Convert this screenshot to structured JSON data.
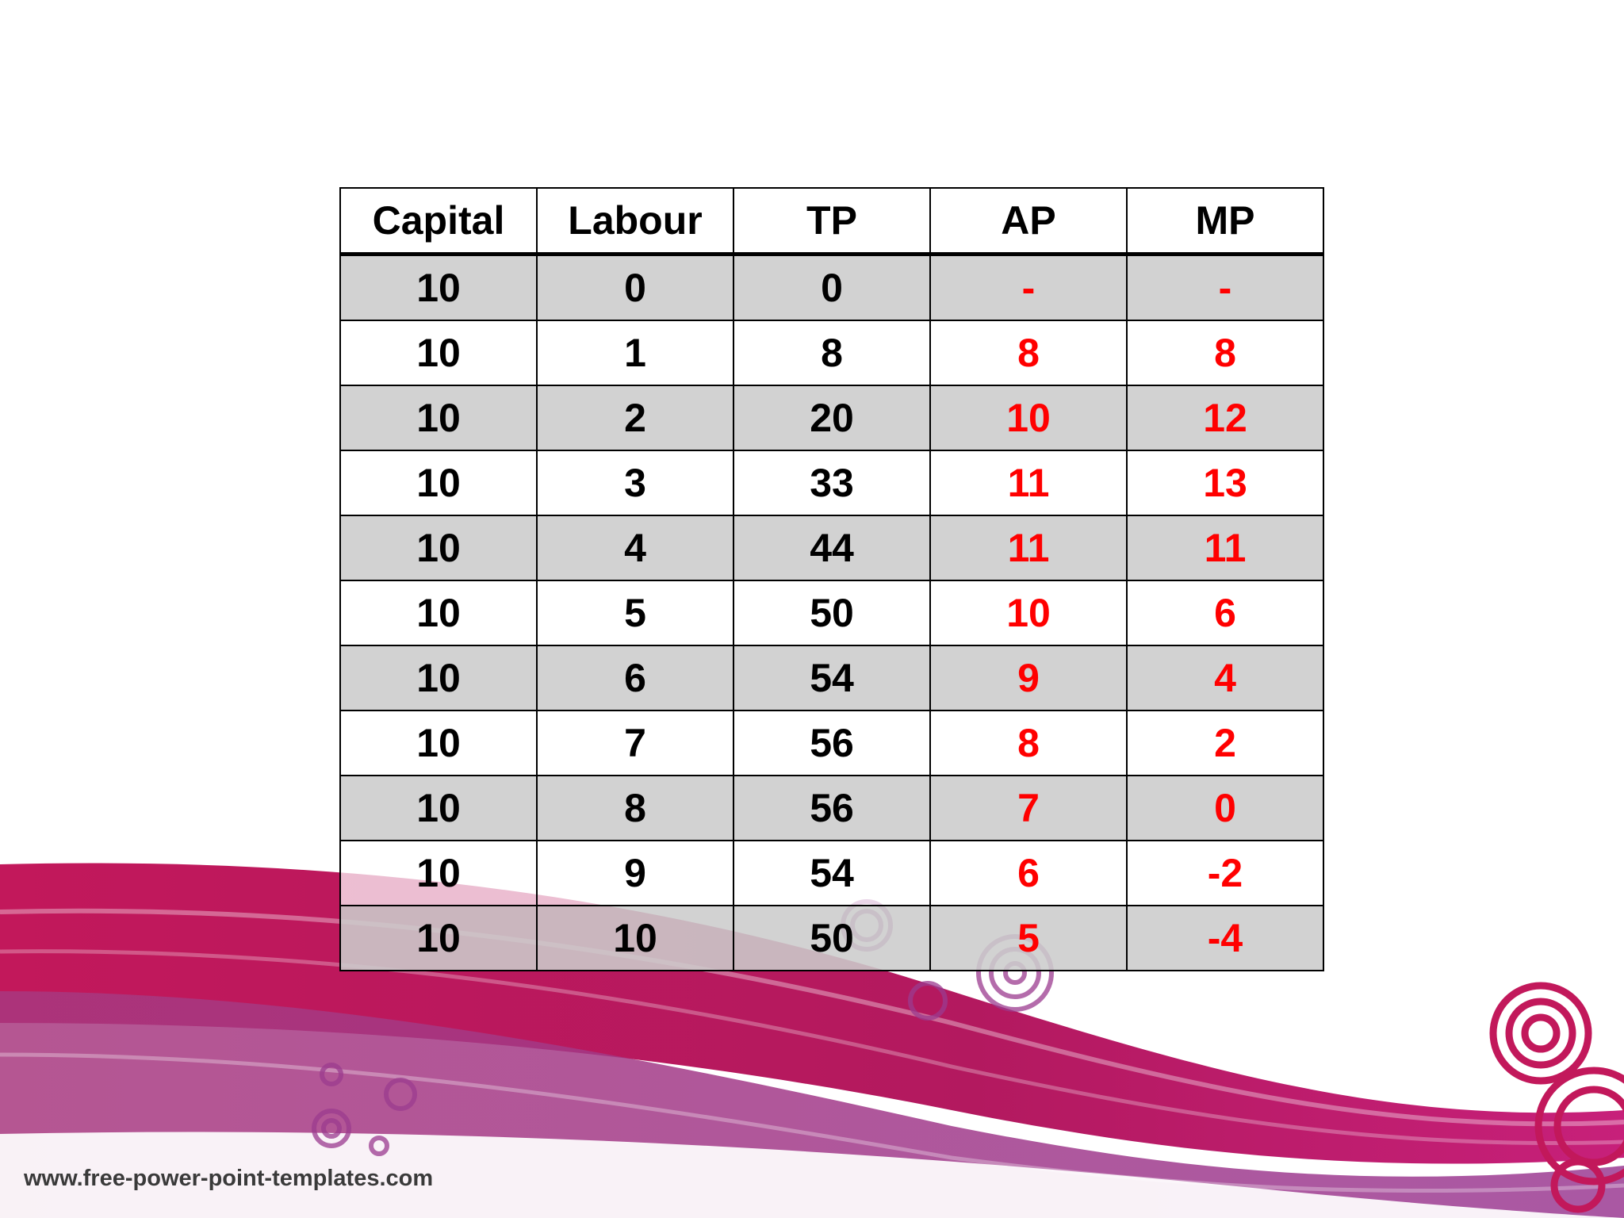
{
  "table": {
    "headers": [
      "Capital",
      "Labour",
      "TP",
      "AP",
      "MP"
    ],
    "rows": [
      [
        "10",
        "0",
        "0",
        "-",
        "-"
      ],
      [
        "10",
        "1",
        "8",
        "8",
        "8"
      ],
      [
        "10",
        "2",
        "20",
        "10",
        "12"
      ],
      [
        "10",
        "3",
        "33",
        "11",
        "13"
      ],
      [
        "10",
        "4",
        "44",
        "11",
        "11"
      ],
      [
        "10",
        "5",
        "50",
        "10",
        "6"
      ],
      [
        "10",
        "6",
        "54",
        "9",
        "4"
      ],
      [
        "10",
        "7",
        "56",
        "8",
        "2"
      ],
      [
        "10",
        "8",
        "56",
        "7",
        "0"
      ],
      [
        "10",
        "9",
        "54",
        "6",
        "-2"
      ],
      [
        "10",
        "10",
        "50",
        "5",
        "-4"
      ]
    ]
  },
  "footer": {
    "url": "www.free-power-point-templates.com"
  },
  "colors": {
    "text": "#000000",
    "highlight": "#ff0000",
    "alt_row": "#cccccc",
    "brand_pink": "#c2185b",
    "brand_purple": "#9c3a8a"
  }
}
